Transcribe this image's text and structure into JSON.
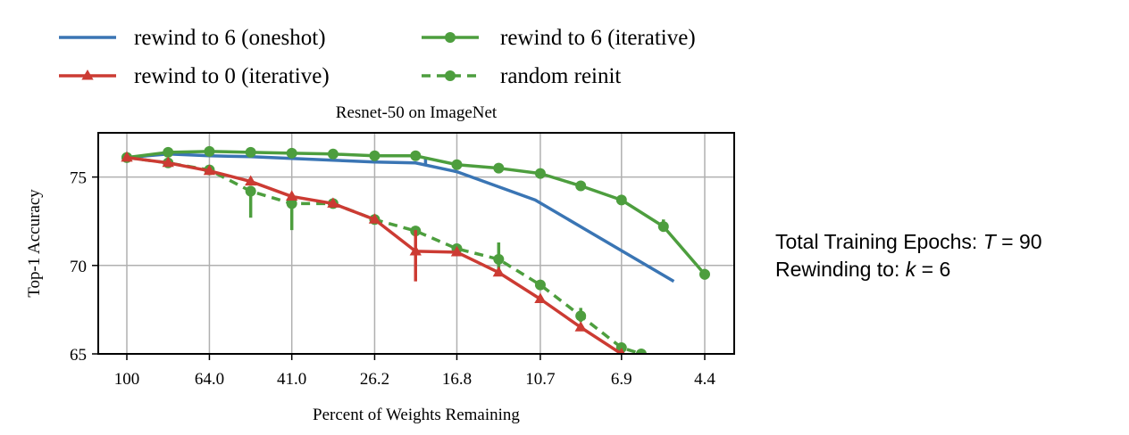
{
  "side_note": {
    "line1_prefix": "Total Training Epochs: ",
    "line1_var": "T",
    "line1_suffix": " = 90",
    "line2_prefix": "Rewinding to: ",
    "line2_var": "k",
    "line2_suffix": " = 6"
  },
  "chart_data": {
    "type": "line",
    "title": "Resnet-50 on ImageNet",
    "xlabel": "Percent of Weights Remaining",
    "ylabel": "Top-1 Accuracy",
    "x_scale": "log",
    "x_reversed": true,
    "x_ticks": [
      "100",
      "64.0",
      "41.0",
      "26.2",
      "16.8",
      "10.7",
      "6.9",
      "4.4"
    ],
    "y_ticks": [
      65,
      70,
      75
    ],
    "ylim": [
      65,
      77.5
    ],
    "grid": true,
    "legend_position": "top, above title, two columns",
    "series": [
      {
        "name": "rewind to 6 (oneshot)",
        "color": "#3a75b4",
        "style": "solid",
        "marker": "none",
        "x": [
          100,
          80,
          64,
          51.2,
          41,
          32.8,
          26.2,
          21.0,
          16.8,
          11.0,
          5.2
        ],
        "y": [
          76.1,
          76.3,
          76.2,
          76.15,
          76.05,
          75.95,
          75.85,
          75.8,
          75.3,
          73.7,
          69.1
        ],
        "error_bars": [
          {
            "x": 19.9,
            "low": 75.65,
            "high": 76.05
          }
        ]
      },
      {
        "name": "rewind to 0 (iterative)",
        "color": "#cc3b33",
        "style": "solid",
        "marker": "triangle",
        "x": [
          100,
          80,
          64,
          51.2,
          41,
          32.8,
          26.2,
          21.0,
          16.8,
          13.4,
          10.7,
          8.6,
          6.9
        ],
        "y": [
          76.1,
          75.8,
          75.35,
          74.75,
          73.9,
          73.5,
          72.6,
          70.8,
          70.75,
          69.6,
          68.1,
          66.5,
          65.0
        ],
        "error_bars": [
          {
            "x": 21.0,
            "low": 69.1,
            "high": 72.0
          }
        ]
      },
      {
        "name": "rewind to 6 (iterative)",
        "color": "#4d9e3e",
        "style": "solid",
        "marker": "circle",
        "x": [
          100,
          80,
          64,
          51.2,
          41,
          32.8,
          26.2,
          21.0,
          16.8,
          13.4,
          10.7,
          8.6,
          6.9,
          5.5,
          4.4
        ],
        "y": [
          76.1,
          76.4,
          76.45,
          76.4,
          76.35,
          76.3,
          76.2,
          76.2,
          75.7,
          75.5,
          75.2,
          74.5,
          73.7,
          72.2,
          69.5
        ],
        "error_bars": [
          {
            "x": 5.5,
            "low": 71.9,
            "high": 72.6
          },
          {
            "x": 4.4,
            "low": 69.2,
            "high": 69.8
          }
        ]
      },
      {
        "name": "random reinit",
        "color": "#4d9e3e",
        "style": "dashed",
        "marker": "circle",
        "x": [
          100,
          80,
          64,
          51.2,
          41,
          32.8,
          26.2,
          21.0,
          16.8,
          13.4,
          10.7,
          8.6,
          6.9,
          6.2
        ],
        "y": [
          76.1,
          75.8,
          75.4,
          74.2,
          73.5,
          73.5,
          72.6,
          71.95,
          70.95,
          70.35,
          68.9,
          67.15,
          65.35,
          65.0
        ],
        "error_bars": [
          {
            "x": 51.2,
            "low": 72.7,
            "high": 74.5
          },
          {
            "x": 41,
            "low": 72.0,
            "high": 74.0
          },
          {
            "x": 13.4,
            "low": 69.8,
            "high": 71.3
          },
          {
            "x": 8.6,
            "low": 66.8,
            "high": 67.6
          }
        ]
      }
    ]
  }
}
